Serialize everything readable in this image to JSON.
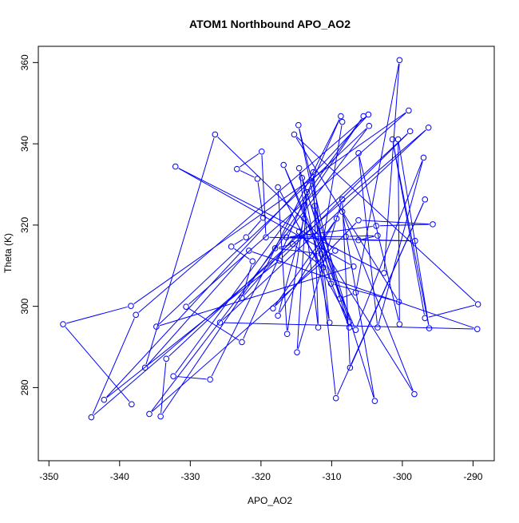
{
  "chart_data": {
    "type": "line",
    "title": "ATOM1 Northbound APO_AO2",
    "xlabel": "APO_AO2",
    "ylabel": "Theta (K)",
    "xlim": [
      -351.5,
      -287
    ],
    "ylim": [
      262,
      364
    ],
    "xticks": [
      -350,
      -340,
      -330,
      -320,
      -310,
      -300,
      -290
    ],
    "yticks": [
      280,
      300,
      320,
      340,
      360
    ],
    "grid": false,
    "style": "points connected by lines",
    "color": "#0000ff",
    "series": [
      {
        "x": [
          -338.3,
          -348.0,
          -338.4,
          -299.1,
          -330.6,
          -322.7,
          -308.7,
          -327.2,
          -332.4,
          -305.5,
          -334.2,
          -333.4,
          -298.9,
          -317.4,
          -342.2,
          -304.8,
          -337.7,
          -344.0,
          -296.3,
          -325.8,
          -289.4,
          -321.7,
          -336.4,
          -326.5,
          -309.5,
          -335.8,
          -304.7,
          -334.8,
          -306.9,
          -332.1,
          -302.6,
          -300.4,
          -306.6,
          -308.8,
          -314.7,
          -310.1,
          -300.5,
          -315.3,
          -289.3,
          -296.8,
          -301.4,
          -296.2,
          -300.6,
          -300.4,
          -306.2,
          -303.5,
          -297.0,
          -306.6,
          -316.8,
          -307.5,
          -314.6,
          -311.9,
          -312.6,
          -310.3,
          -314.2,
          -307.5,
          -317.6,
          -316.3,
          -313.5,
          -314.9,
          -308.5,
          -307.4,
          -296.8,
          -309.4,
          -312.4,
          -303.9,
          -308.5,
          -298.3,
          -313.9,
          -317.6,
          -309.3,
          -318.3,
          -306.2,
          -295.7,
          -303.7,
          -316.4,
          -308.0,
          -303.5,
          -306.2,
          -298.2,
          -319.3,
          -319.9,
          -323.4,
          -320.5,
          -319.7,
          -322.1,
          -324.2,
          -321.2,
          -322.7,
          -314.6,
          -311.2,
          -315.5,
          -318.0,
          -311.5,
          -308.5
        ],
        "y": [
          275.9,
          295.6,
          300.1,
          348.2,
          299.9,
          291.2,
          346.8,
          282.0,
          282.8,
          346.8,
          272.9,
          287.1,
          343.1,
          311.3,
          277.0,
          347.2,
          297.9,
          272.7,
          344.0,
          296.0,
          294.4,
          313.7,
          284.9,
          342.3,
          313.7,
          273.5,
          344.4,
          295.0,
          309.8,
          334.4,
          308.2,
          360.6,
          303.4,
          301.9,
          344.6,
          305.6,
          301.1,
          342.3,
          300.5,
          297.1,
          341.1,
          294.6,
          341.1,
          295.6,
          337.7,
          294.8,
          336.6,
          294.2,
          334.8,
          294.8,
          334.0,
          294.8,
          333.0,
          296.0,
          331.6,
          296.2,
          329.3,
          293.2,
          328.1,
          288.7,
          326.3,
          284.9,
          326.3,
          277.4,
          324.7,
          276.7,
          323.3,
          278.4,
          321.6,
          297.7,
          321.6,
          299.5,
          321.2,
          320.2,
          319.8,
          317.0,
          317.2,
          317.4,
          316.3,
          316.1,
          317.0,
          338.1,
          333.8,
          331.4,
          321.8,
          317.0,
          314.7,
          311.1,
          302.1,
          318.4,
          309.6,
          315.3,
          314.3,
          312.9,
          345.4
        ]
      }
    ]
  }
}
